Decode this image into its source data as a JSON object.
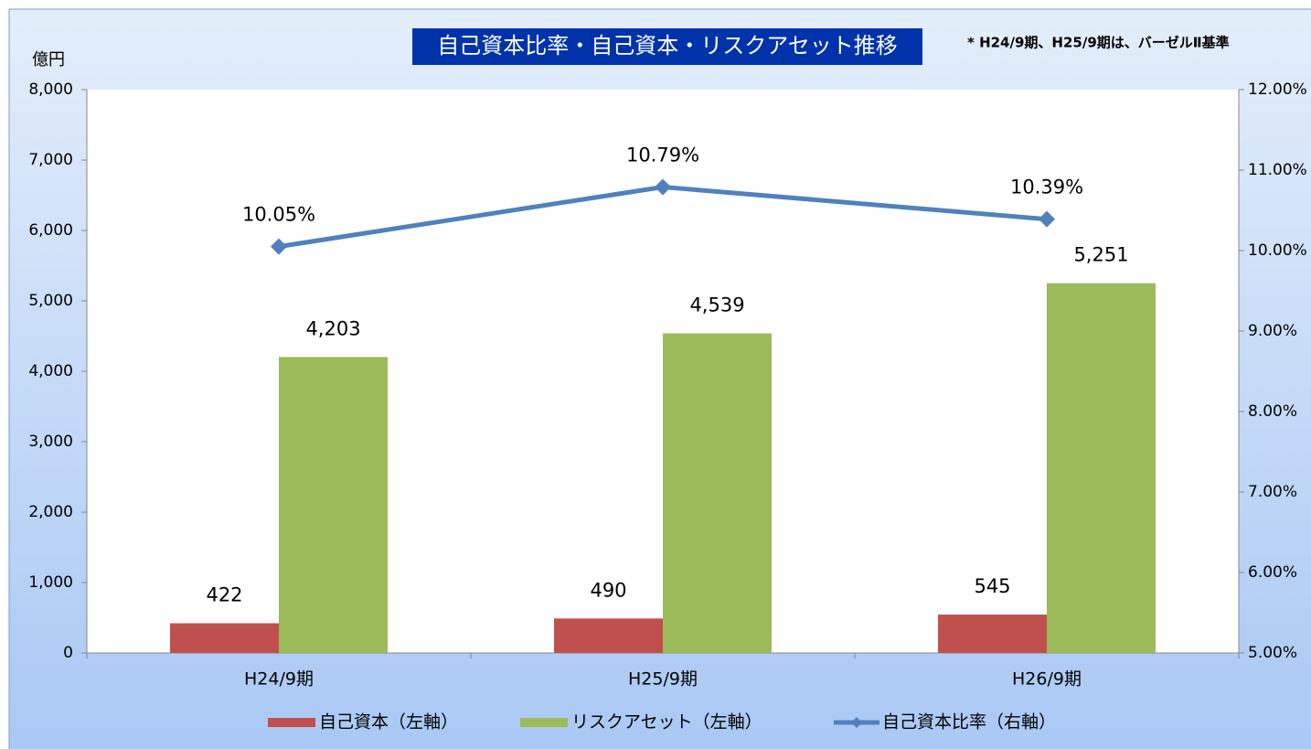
{
  "chart_data": {
    "type": "bar",
    "title": "自己資本比率・自己資本・リスクアセット推移",
    "note": "* H24/9期、H25/9期は、バーゼルⅡ基準",
    "ylabel": "億円",
    "categories": [
      "H24/9期",
      "H25/9期",
      "H26/9期"
    ],
    "series": [
      {
        "name": "自己資本（左軸）",
        "type": "bar",
        "color": "#c0504d",
        "values": [
          422,
          490,
          545
        ]
      },
      {
        "name": "リスクアセット（左軸）",
        "type": "bar",
        "color": "#9bbb59",
        "values": [
          4203,
          4539,
          5251
        ],
        "value_labels": [
          "4,203",
          "4,539",
          "5,251"
        ]
      },
      {
        "name": "自己資本比率（右軸）",
        "type": "line",
        "axis": "y2",
        "color": "#4f81bd",
        "values": [
          10.05,
          10.79,
          10.39
        ],
        "value_labels": [
          "10.05%",
          "10.79%",
          "10.39%"
        ]
      }
    ],
    "ylim": [
      0,
      8000
    ],
    "yticks": [
      0,
      {
        "value": 1000,
        "label": "1,000"
      },
      {
        "value": 2000,
        "label": "2,000"
      },
      {
        "value": 3000,
        "label": "3,000"
      },
      {
        "value": 4000,
        "label": "4,000"
      },
      {
        "value": 5000,
        "label": "5,000"
      },
      {
        "value": 6000,
        "label": "6,000"
      },
      {
        "value": 7000,
        "label": "7,000"
      },
      {
        "value": 8000,
        "label": "8,000"
      }
    ],
    "y2lim": [
      5,
      12
    ],
    "y2ticks": [
      {
        "value": 5,
        "label": "5.00%"
      },
      {
        "value": 6,
        "label": "6.00%"
      },
      {
        "value": 7,
        "label": "7.00%"
      },
      {
        "value": 8,
        "label": "8.00%"
      },
      {
        "value": 9,
        "label": "9.00%"
      },
      {
        "value": 10,
        "label": "10.00%"
      },
      {
        "value": 11,
        "label": "11.00%"
      },
      {
        "value": 12,
        "label": "12.00%"
      }
    ],
    "grid": false
  }
}
